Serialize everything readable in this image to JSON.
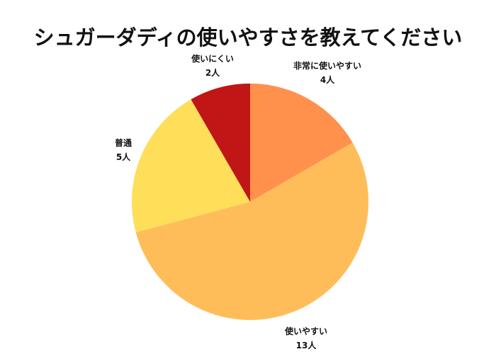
{
  "chart_data": {
    "type": "pie",
    "title": "シュガーダディの使いやすさを教えてください",
    "unit": "人",
    "slices": [
      {
        "label": "非常に使いやすい",
        "value": 4,
        "value_label": "4人",
        "color": "#FF914D"
      },
      {
        "label": "使いやすい",
        "value": 13,
        "value_label": "13人",
        "color": "#FFBD59"
      },
      {
        "label": "普通",
        "value": 5,
        "value_label": "5人",
        "color": "#FFDE59"
      },
      {
        "label": "使いにくい",
        "value": 2,
        "value_label": "2人",
        "color": "#C01616"
      }
    ],
    "start": "top",
    "direction": "clockwise",
    "legend": "none"
  }
}
